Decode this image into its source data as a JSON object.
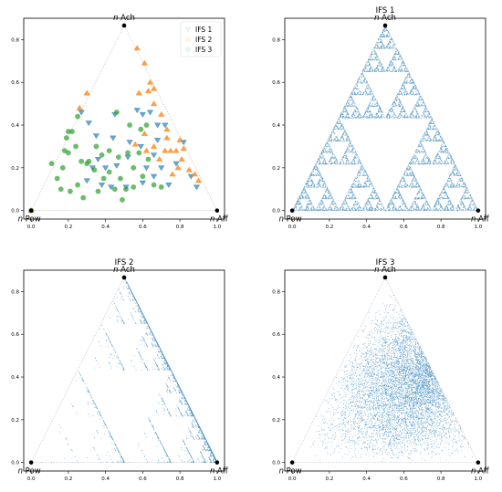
{
  "colors": {
    "ifs1": "#1f77b4",
    "ifs2": "#ff7f0e",
    "ifs3": "#2ca02c",
    "vertex": "#000000",
    "edge": "#bbbbbb"
  },
  "vertex_labels": {
    "top": "n Ach",
    "left": "n Pow",
    "right": "n Aff"
  },
  "chart_data": [
    {
      "type": "scatter",
      "title": "",
      "xlim": [
        -0.04,
        1.04
      ],
      "ylim": [
        -0.04,
        0.9
      ],
      "x_ticks": [
        0.0,
        0.2,
        0.4,
        0.6,
        0.8,
        1.0
      ],
      "y_ticks": [
        0.0,
        0.2,
        0.4,
        0.6,
        0.8
      ],
      "legend_position": "top-right",
      "vertices": [
        {
          "x": 0.0,
          "y": 0.0,
          "label": "n Pow"
        },
        {
          "x": 1.0,
          "y": 0.0,
          "label": "n Aff"
        },
        {
          "x": 0.5,
          "y": 0.866,
          "label": "n Ach"
        }
      ],
      "series": [
        {
          "name": "IFS 1",
          "marker": "triangle-down",
          "points": [
            [
              0.27,
              0.46
            ],
            [
              0.35,
              0.35
            ],
            [
              0.45,
              0.45
            ],
            [
              0.57,
              0.47
            ],
            [
              0.6,
              0.45
            ],
            [
              0.64,
              0.46
            ],
            [
              0.68,
              0.4
            ],
            [
              0.72,
              0.4
            ],
            [
              0.33,
              0.2
            ],
            [
              0.4,
              0.2
            ],
            [
              0.52,
              0.25
            ],
            [
              0.59,
              0.3
            ],
            [
              0.66,
              0.16
            ],
            [
              0.46,
              0.21
            ],
            [
              0.43,
              0.11
            ],
            [
              0.62,
              0.2
            ],
            [
              0.7,
              0.2
            ],
            [
              0.78,
              0.22
            ],
            [
              0.86,
              0.16
            ],
            [
              0.89,
              0.11
            ],
            [
              0.51,
              0.11
            ],
            [
              0.74,
              0.12
            ],
            [
              0.6,
              0.13
            ],
            [
              0.38,
              0.12
            ],
            [
              0.3,
              0.14
            ],
            [
              0.66,
              0.26
            ],
            [
              0.82,
              0.32
            ],
            [
              0.53,
              0.32
            ],
            [
              0.31,
              0.41
            ],
            [
              0.44,
              0.34
            ],
            [
              0.36,
              0.24
            ],
            [
              0.68,
              0.33
            ]
          ]
        },
        {
          "name": "IFS 2",
          "marker": "triangle-up",
          "points": [
            [
              0.0,
              0.0
            ],
            [
              0.57,
              0.76
            ],
            [
              0.61,
              0.69
            ],
            [
              0.64,
              0.6
            ],
            [
              0.66,
              0.57
            ],
            [
              0.63,
              0.56
            ],
            [
              0.26,
              0.48
            ],
            [
              0.3,
              0.55
            ],
            [
              0.7,
              0.45
            ],
            [
              0.73,
              0.38
            ],
            [
              0.8,
              0.33
            ],
            [
              0.82,
              0.29
            ],
            [
              0.75,
              0.28
            ],
            [
              0.72,
              0.28
            ],
            [
              0.69,
              0.24
            ],
            [
              0.76,
              0.17
            ],
            [
              0.79,
              0.2
            ],
            [
              0.81,
              0.24
            ],
            [
              0.85,
              0.19
            ],
            [
              0.88,
              0.17
            ],
            [
              0.9,
              0.14
            ],
            [
              0.78,
              0.28
            ],
            [
              0.66,
              0.3
            ],
            [
              0.61,
              0.36
            ],
            [
              0.56,
              0.31
            ],
            [
              0.62,
              0.28
            ],
            [
              0.58,
              0.55
            ],
            [
              0.66,
              0.5
            ],
            [
              0.73,
              0.34
            ]
          ]
        },
        {
          "name": "IFS 3",
          "marker": "circle",
          "points": [
            [
              0.0,
              0.0
            ],
            [
              0.18,
              0.28
            ],
            [
              0.19,
              0.34
            ],
            [
              0.2,
              0.37
            ],
            [
              0.22,
              0.37
            ],
            [
              0.25,
              0.44
            ],
            [
              0.11,
              0.22
            ],
            [
              0.14,
              0.15
            ],
            [
              0.17,
              0.2
            ],
            [
              0.2,
              0.27
            ],
            [
              0.24,
              0.3
            ],
            [
              0.27,
              0.23
            ],
            [
              0.31,
              0.23
            ],
            [
              0.35,
              0.3
            ],
            [
              0.38,
              0.26
            ],
            [
              0.42,
              0.28
            ],
            [
              0.46,
              0.46
            ],
            [
              0.47,
              0.25
            ],
            [
              0.55,
              0.2
            ],
            [
              0.58,
              0.27
            ],
            [
              0.59,
              0.38
            ],
            [
              0.53,
              0.4
            ],
            [
              0.6,
              0.16
            ],
            [
              0.63,
              0.24
            ],
            [
              0.66,
              0.12
            ],
            [
              0.7,
              0.11
            ],
            [
              0.51,
              0.1
            ],
            [
              0.55,
              0.11
            ],
            [
              0.49,
              0.05
            ],
            [
              0.45,
              0.1
            ],
            [
              0.39,
              0.15
            ],
            [
              0.34,
              0.19
            ],
            [
              0.3,
              0.22
            ],
            [
              0.25,
              0.12
            ],
            [
              0.21,
              0.09
            ],
            [
              0.16,
              0.1
            ],
            [
              0.28,
              0.06
            ],
            [
              0.36,
              0.09
            ],
            [
              0.42,
              0.18
            ],
            [
              0.48,
              0.15
            ],
            [
              0.52,
              0.27
            ],
            [
              0.62,
              0.4
            ]
          ]
        }
      ]
    },
    {
      "type": "scatter",
      "title": "IFS 1",
      "xlim": [
        -0.04,
        1.04
      ],
      "ylim": [
        -0.04,
        0.9
      ],
      "x_ticks": [
        0.0,
        0.2,
        0.4,
        0.6,
        0.8,
        1.0
      ],
      "y_ticks": [
        0.0,
        0.2,
        0.4,
        0.6,
        0.8
      ],
      "attractor": {
        "maps": [
          [
            0.5,
            0.0,
            0.0
          ],
          [
            0.5,
            0.5,
            0.0
          ],
          [
            0.5,
            0.25,
            0.433
          ]
        ],
        "weights": [
          0.333,
          0.333,
          0.334
        ],
        "points": 9000,
        "note_text": ""
      }
    },
    {
      "type": "scatter",
      "title": "IFS 2",
      "xlim": [
        -0.04,
        1.04
      ],
      "ylim": [
        -0.04,
        0.9
      ],
      "x_ticks": [
        0.0,
        0.2,
        0.4,
        0.6,
        0.8,
        1.0
      ],
      "y_ticks": [
        0.0,
        0.2,
        0.4,
        0.6,
        0.8
      ],
      "attractor": {
        "maps": [
          [
            0.5,
            0.0,
            0.0
          ],
          [
            0.5,
            0.5,
            0.0
          ],
          [
            0.5,
            0.25,
            0.433
          ]
        ],
        "weights": [
          0.05,
          0.6,
          0.35
        ],
        "points": 7000,
        "note_text": ""
      }
    },
    {
      "type": "scatter",
      "title": "IFS 3",
      "xlim": [
        -0.04,
        1.04
      ],
      "ylim": [
        -0.04,
        0.9
      ],
      "x_ticks": [
        0.0,
        0.2,
        0.4,
        0.6,
        0.8,
        1.0
      ],
      "y_ticks": [
        0.0,
        0.2,
        0.4,
        0.6,
        0.8
      ],
      "attractor": {
        "mode": "uniform-centered",
        "points": 7000,
        "note_text": ""
      }
    }
  ]
}
